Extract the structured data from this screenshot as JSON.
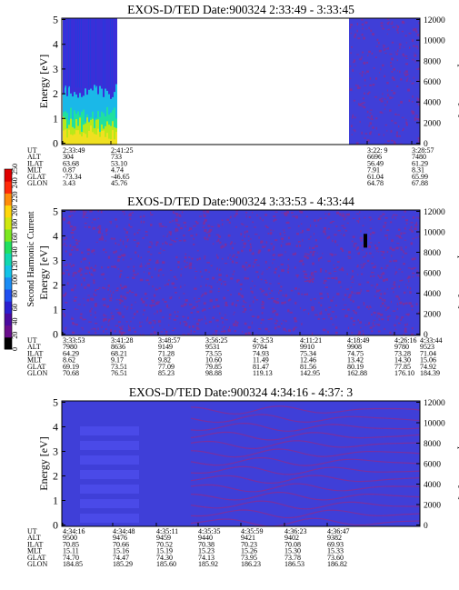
{
  "colors": {
    "background_fill": "#3f3fd8",
    "texture_fill": "#7a2fa0",
    "frame": "#000000"
  },
  "colorbar": {
    "label": "Second Harmonic Current",
    "ticks": [
      "0",
      "20",
      "40",
      "60",
      "80",
      "100",
      "120",
      "140",
      "160",
      "180",
      "200",
      "220",
      "240",
      "250"
    ],
    "colors": [
      "#000000",
      "#6a0d8c",
      "#4b0aa0",
      "#2a1fd0",
      "#1f4ff0",
      "#1a8cf5",
      "#13c3e8",
      "#10d8b0",
      "#20e060",
      "#7be81f",
      "#cfe80f",
      "#ffd70a",
      "#ff8c0a",
      "#ff2a0a",
      "#e00000"
    ]
  },
  "chart_data": [
    {
      "type": "heatmap",
      "title": "EXOS-D/TED   Date:900324   2:33:49 - 3:33:45",
      "ylabel": "Energy [eV]",
      "y2label": "Temperature [K]",
      "ylim": [
        0,
        5
      ],
      "y2lim": [
        0,
        12000
      ],
      "yticks": [
        "0",
        "1",
        "2",
        "3",
        "4",
        "5"
      ],
      "y2ticks": [
        "0",
        "2000",
        "4000",
        "6000",
        "8000",
        "10000",
        "12000"
      ],
      "x_ticks": [
        "2:33:49",
        "2:41:25",
        "3:22: 9",
        "3:28:57"
      ],
      "data_spans": [
        [
          "2:33:49",
          "2:41:25"
        ],
        [
          "3:22: 9",
          "3:33:45"
        ]
      ],
      "orbit_table": {
        "labels": [
          "UT",
          "ALT",
          "ILAT",
          "MLT",
          "GLAT",
          "GLON"
        ],
        "columns": [
          [
            "2:33:49",
            "304",
            "63.68",
            "0.87",
            "-73.34",
            "3.43"
          ],
          [
            "2:41:25",
            "733",
            "53.10",
            "4.74",
            "-46.65",
            "45.76"
          ],
          [
            "3:22: 9",
            "6696",
            "56.49",
            "7.91",
            "61.04",
            "64.78"
          ],
          [
            "3:28:57",
            "7480",
            "61.29",
            "8.31",
            "65.99",
            "67.88"
          ]
        ]
      }
    },
    {
      "type": "heatmap",
      "title": "EXOS-D/TED   Date:900324   3:33:53 - 4:33:44",
      "ylabel": "Energy [eV]",
      "y2label": "Temperature [K]",
      "ylim": [
        0,
        5
      ],
      "y2lim": [
        0,
        12000
      ],
      "yticks": [
        "0",
        "1",
        "2",
        "3",
        "4",
        "5"
      ],
      "y2ticks": [
        "0",
        "2000",
        "4000",
        "6000",
        "8000",
        "10000",
        "12000"
      ],
      "x_ticks": [
        "3:33:53",
        "3:41:28",
        "3:48:57",
        "3:56:25",
        "4: 3:53",
        "4:11:21",
        "4:18:49",
        "4:26:16",
        "4:33:44"
      ],
      "orbit_table": {
        "labels": [
          "UT",
          "ALT",
          "ILAT",
          "MLT",
          "GLAT",
          "GLON"
        ],
        "columns": [
          [
            "3:33:53",
            "7980",
            "64.29",
            "8.62",
            "69.19",
            "70.68"
          ],
          [
            "3:41:28",
            "8636",
            "68.21",
            "9.17",
            "73.51",
            "76.51"
          ],
          [
            "3:48:57",
            "9149",
            "71.28",
            "9.82",
            "77.09",
            "85.23"
          ],
          [
            "3:56:25",
            "9531",
            "73.55",
            "10.60",
            "79.85",
            "98.88"
          ],
          [
            "4: 3:53",
            "9784",
            "74.93",
            "11.49",
            "81.47",
            "119.13"
          ],
          [
            "4:11:21",
            "9910",
            "75.34",
            "12.46",
            "81.56",
            "142.95"
          ],
          [
            "4:18:49",
            "9908",
            "74.75",
            "13.42",
            "80.19",
            "162.88"
          ],
          [
            "4:26:16",
            "9780",
            "73.28",
            "14.30",
            "77.85",
            "176.10"
          ],
          [
            "4:33:44",
            "9523",
            "71.04",
            "15.06",
            "74.92",
            "184.39"
          ]
        ]
      }
    },
    {
      "type": "heatmap",
      "title": "EXOS-D/TED   Date:900324   4:34:16 - 4:37: 3",
      "ylabel": "Energy [eV]",
      "y2label": "Temperature [K]",
      "ylim": [
        0,
        5
      ],
      "y2lim": [
        0,
        12000
      ],
      "yticks": [
        "0",
        "1",
        "2",
        "3",
        "4",
        "5"
      ],
      "y2ticks": [
        "0",
        "2000",
        "4000",
        "6000",
        "8000",
        "10000",
        "12000"
      ],
      "x_ticks": [
        "4:34:16",
        "4:34:48",
        "4:35:11",
        "4:35:35",
        "4:35:59",
        "4:36:23",
        "4:36:47"
      ],
      "orbit_table": {
        "labels": [
          "UT",
          "ALT",
          "ILAT",
          "MLT",
          "GLAT",
          "GLON"
        ],
        "columns": [
          [
            "4:34:16",
            "9500",
            "70.85",
            "15.11",
            "74.70",
            "184.85"
          ],
          [
            "4:34:48",
            "9476",
            "70.66",
            "15.16",
            "74.47",
            "185.29"
          ],
          [
            "4:35:11",
            "9459",
            "70.52",
            "15.19",
            "74.30",
            "185.60"
          ],
          [
            "4:35:35",
            "9440",
            "70.38",
            "15.23",
            "74.13",
            "185.92"
          ],
          [
            "4:35:59",
            "9421",
            "70.23",
            "15.26",
            "73.95",
            "186.23"
          ],
          [
            "4:36:23",
            "9402",
            "70.08",
            "15.30",
            "73.78",
            "186.53"
          ],
          [
            "4:36:47",
            "9382",
            "69.93",
            "15.33",
            "73.60",
            "186.82"
          ]
        ]
      }
    }
  ]
}
